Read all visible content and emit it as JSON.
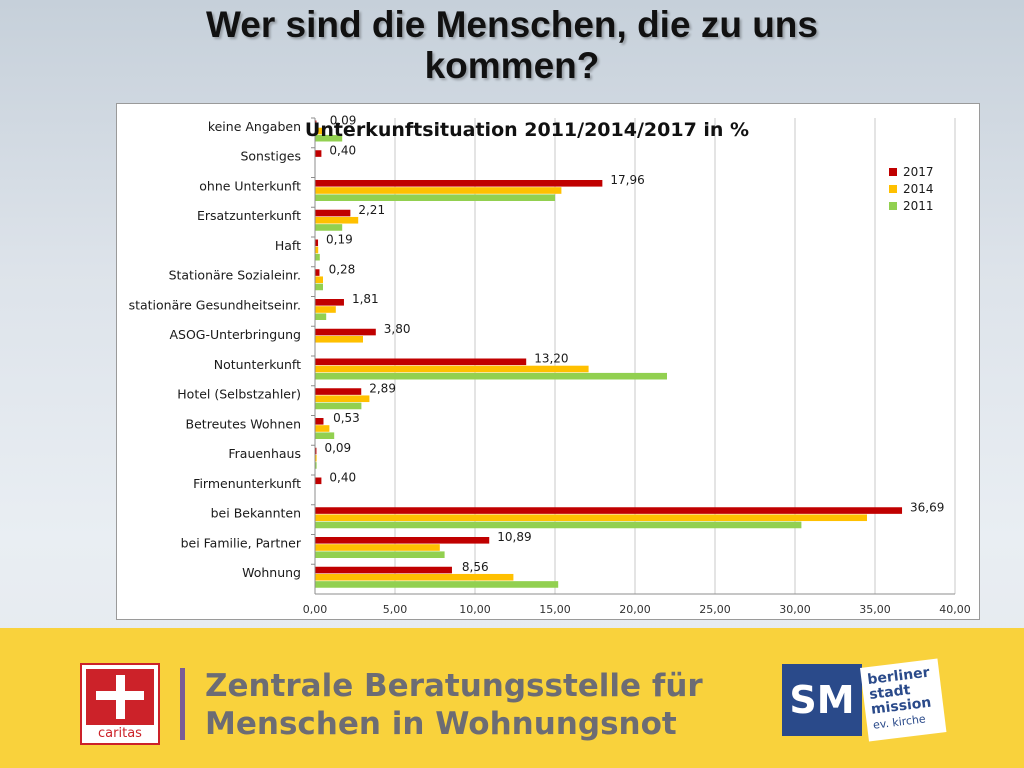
{
  "slide": {
    "title_line1": "Wer sind die Menschen, die zu uns",
    "title_line2": "kommen?"
  },
  "colors": {
    "series_2017": "#c00000",
    "series_2014": "#ffc000",
    "series_2011": "#92d050",
    "footer_bg": "#f9d23c",
    "caritas_red": "#cc2229",
    "sm_blue": "#2a4a8a"
  },
  "chart_data": {
    "type": "bar",
    "orientation": "horizontal",
    "title": "Unterkunftsituation 2011/2014/2017  in %",
    "xlabel": "",
    "ylabel": "",
    "xlim": [
      0,
      40
    ],
    "x_ticks": [
      "0,00",
      "5,00",
      "10,00",
      "15,00",
      "20,00",
      "25,00",
      "30,00",
      "35,00",
      "40,00"
    ],
    "grid": "vertical",
    "legend_position": "right",
    "categories": [
      "keine Angaben",
      "Sonstiges",
      "ohne Unterkunft",
      "Ersatzunterkunft",
      "Haft",
      "Stationäre Sozialeinr.",
      "stationäre Gesundheitseinr.",
      "ASOG-Unterbringung",
      "Notunterkunft",
      "Hotel (Selbstzahler)",
      "Betreutes Wohnen",
      "Frauenhaus",
      "Firmenunterkunft",
      "bei Bekannten",
      "bei Familie, Partner",
      "Wohnung"
    ],
    "series": [
      {
        "name": "2017",
        "values": [
          0.09,
          0.4,
          17.96,
          2.21,
          0.19,
          0.28,
          1.81,
          3.8,
          13.2,
          2.89,
          0.53,
          0.09,
          0.4,
          36.69,
          10.89,
          8.56
        ]
      },
      {
        "name": "2014",
        "values": [
          0.6,
          0.0,
          15.4,
          2.7,
          0.2,
          0.5,
          1.3,
          3.0,
          17.1,
          3.4,
          0.9,
          0.1,
          0.0,
          34.5,
          7.8,
          12.4
        ]
      },
      {
        "name": "2011",
        "values": [
          1.7,
          0.0,
          15.0,
          1.7,
          0.3,
          0.5,
          0.7,
          0.0,
          22.0,
          2.9,
          1.2,
          0.1,
          0.0,
          30.4,
          8.1,
          15.2
        ]
      }
    ],
    "data_labels": [
      "0,09",
      "0,40",
      "17,96",
      "2,21",
      "0,19",
      "0,28",
      "1,81",
      "3,80",
      "13,20",
      "2,89",
      "0,53",
      "0,09",
      "0,40",
      "36,69",
      "10,89",
      "8,56"
    ]
  },
  "footer": {
    "caritas_word": "caritas",
    "line1": "Zentrale Beratungsstelle für",
    "line2": "Menschen in Wohnungsnot",
    "sm_mark": "SM",
    "sm_line1": "berliner",
    "sm_line2": "stadt",
    "sm_line3": "mission",
    "sm_line4": "ev. kirche"
  }
}
